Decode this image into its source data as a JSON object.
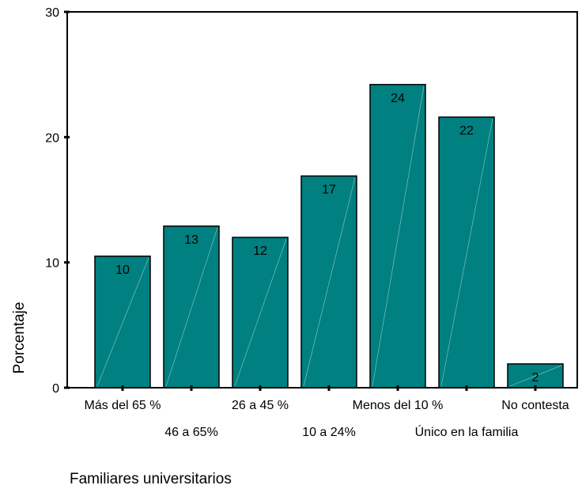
{
  "chart_data": {
    "type": "bar",
    "categories": [
      "Más del 65 %",
      "46 a 65%",
      "26 a 45 %",
      "10 a 24%",
      "Menos del 10 %",
      "Único en la familia",
      "No contesta"
    ],
    "values": [
      10.5,
      12.9,
      12.0,
      16.9,
      24.2,
      21.6,
      1.9
    ],
    "data_labels": [
      "10",
      "13",
      "12",
      "17",
      "24",
      "22",
      "2"
    ],
    "xlabel": "Familiares universitarios",
    "ylabel": "Porcentaje",
    "yticks": [
      0,
      10,
      20,
      30
    ],
    "ylim": [
      0,
      30
    ],
    "grid": false,
    "colors": {
      "bar": "#008080",
      "bar_edge": "#000000"
    }
  }
}
